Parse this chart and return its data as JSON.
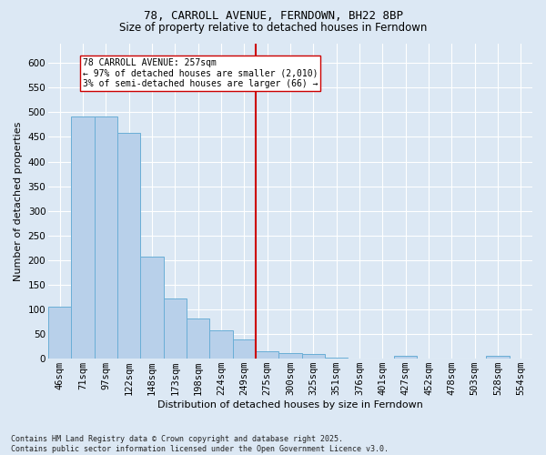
{
  "title": "78, CARROLL AVENUE, FERNDOWN, BH22 8BP",
  "subtitle": "Size of property relative to detached houses in Ferndown",
  "xlabel": "Distribution of detached houses by size in Ferndown",
  "ylabel": "Number of detached properties",
  "footer_line1": "Contains HM Land Registry data © Crown copyright and database right 2025.",
  "footer_line2": "Contains public sector information licensed under the Open Government Licence v3.0.",
  "categories": [
    "46sqm",
    "71sqm",
    "97sqm",
    "122sqm",
    "148sqm",
    "173sqm",
    "198sqm",
    "224sqm",
    "249sqm",
    "275sqm",
    "300sqm",
    "325sqm",
    "351sqm",
    "376sqm",
    "401sqm",
    "427sqm",
    "452sqm",
    "478sqm",
    "503sqm",
    "528sqm",
    "554sqm"
  ],
  "values": [
    105,
    492,
    492,
    458,
    208,
    122,
    82,
    58,
    40,
    15,
    12,
    10,
    2,
    0,
    0,
    6,
    0,
    0,
    0,
    6,
    0
  ],
  "bar_color": "#b8d0ea",
  "bar_edge_color": "#6aaed6",
  "vline_index": 8.5,
  "vline_color": "#cc0000",
  "annotation_text": "78 CARROLL AVENUE: 257sqm\n← 97% of detached houses are smaller (2,010)\n3% of semi-detached houses are larger (66) →",
  "annotation_box_color": "white",
  "annotation_box_edge_color": "#cc0000",
  "ylim": [
    0,
    640
  ],
  "yticks": [
    0,
    50,
    100,
    150,
    200,
    250,
    300,
    350,
    400,
    450,
    500,
    550,
    600
  ],
  "background_color": "#dce8f4",
  "plot_bg_color": "#dce8f4",
  "grid_color": "white",
  "title_fontsize": 9,
  "subtitle_fontsize": 8.5,
  "axis_label_fontsize": 8,
  "tick_fontsize": 7.5,
  "footer_fontsize": 6
}
